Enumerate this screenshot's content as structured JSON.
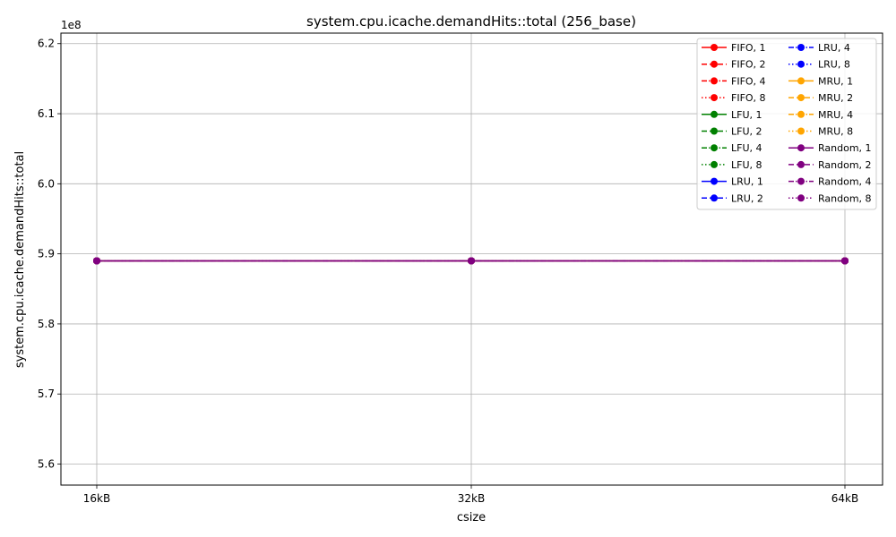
{
  "chart_data": {
    "type": "line",
    "title": "system.cpu.icache.demandHits::total (256_base)",
    "xlabel": "csize",
    "ylabel": "system.cpu.icache.demandHits::total",
    "scale_label": "1e8",
    "categories": [
      "16kB",
      "32kB",
      "64kB"
    ],
    "y_scale": 100000000,
    "ylim": [
      5.57,
      6.215
    ],
    "y_ticks": [
      5.6,
      5.7,
      5.8,
      5.9,
      6.0,
      6.1,
      6.2
    ],
    "y_tick_labels": [
      "5.6",
      "5.7",
      "5.8",
      "5.9",
      "6.0",
      "6.1",
      "6.2"
    ],
    "grid": true,
    "legend_position": "top-right",
    "series": [
      {
        "name": "FIFO, 1",
        "color": "#ff0000",
        "dash": "solid",
        "values": [
          589000000,
          589000000,
          589000000
        ]
      },
      {
        "name": "FIFO, 2",
        "color": "#ff0000",
        "dash": "dashed",
        "values": [
          589000000,
          589000000,
          589000000
        ]
      },
      {
        "name": "FIFO, 4",
        "color": "#ff0000",
        "dash": "dashdot",
        "values": [
          589000000,
          589000000,
          589000000
        ]
      },
      {
        "name": "FIFO, 8",
        "color": "#ff0000",
        "dash": "dotted",
        "values": [
          589000000,
          589000000,
          589000000
        ]
      },
      {
        "name": "LFU, 1",
        "color": "#008000",
        "dash": "solid",
        "values": [
          589000000,
          589000000,
          589000000
        ]
      },
      {
        "name": "LFU, 2",
        "color": "#008000",
        "dash": "dashed",
        "values": [
          589000000,
          589000000,
          589000000
        ]
      },
      {
        "name": "LFU, 4",
        "color": "#008000",
        "dash": "dashdot",
        "values": [
          589000000,
          589000000,
          589000000
        ]
      },
      {
        "name": "LFU, 8",
        "color": "#008000",
        "dash": "dotted",
        "values": [
          589000000,
          589000000,
          589000000
        ]
      },
      {
        "name": "LRU, 1",
        "color": "#0000ff",
        "dash": "solid",
        "values": [
          589000000,
          589000000,
          589000000
        ]
      },
      {
        "name": "LRU, 2",
        "color": "#0000ff",
        "dash": "dashed",
        "values": [
          589000000,
          589000000,
          589000000
        ]
      },
      {
        "name": "LRU, 4",
        "color": "#0000ff",
        "dash": "dashdot",
        "values": [
          589000000,
          589000000,
          589000000
        ]
      },
      {
        "name": "LRU, 8",
        "color": "#0000ff",
        "dash": "dotted",
        "values": [
          589000000,
          589000000,
          589000000
        ]
      },
      {
        "name": "MRU, 1",
        "color": "#ffa500",
        "dash": "solid",
        "values": [
          589000000,
          589000000,
          589000000
        ]
      },
      {
        "name": "MRU, 2",
        "color": "#ffa500",
        "dash": "dashed",
        "values": [
          589000000,
          589000000,
          589000000
        ]
      },
      {
        "name": "MRU, 4",
        "color": "#ffa500",
        "dash": "dashdot",
        "values": [
          589000000,
          589000000,
          589000000
        ]
      },
      {
        "name": "MRU, 8",
        "color": "#ffa500",
        "dash": "dotted",
        "values": [
          589000000,
          589000000,
          589000000
        ]
      },
      {
        "name": "Random, 1",
        "color": "#800080",
        "dash": "solid",
        "values": [
          589000000,
          589000000,
          589000000
        ]
      },
      {
        "name": "Random, 2",
        "color": "#800080",
        "dash": "dashed",
        "values": [
          589000000,
          589000000,
          589000000
        ]
      },
      {
        "name": "Random, 4",
        "color": "#800080",
        "dash": "dashdot",
        "values": [
          589000000,
          589000000,
          589000000
        ]
      },
      {
        "name": "Random, 8",
        "color": "#800080",
        "dash": "dotted",
        "values": [
          589000000,
          589000000,
          589000000
        ]
      }
    ]
  }
}
